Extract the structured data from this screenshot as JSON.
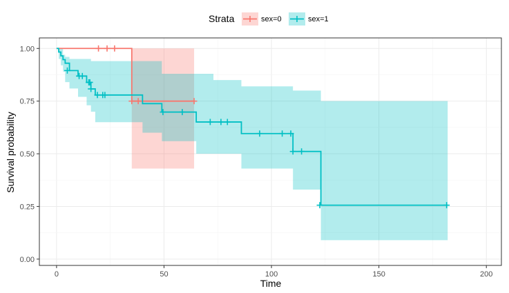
{
  "chart_data": {
    "type": "line",
    "subtype": "kaplan-meier-step",
    "xlabel": "Time",
    "ylabel": "Survival probability",
    "xlim": [
      -8,
      207
    ],
    "ylim": [
      -0.03,
      1.05
    ],
    "x_ticks": [
      0,
      50,
      100,
      150,
      200
    ],
    "x_tick_labels": [
      "0",
      "50",
      "100",
      "150",
      "200"
    ],
    "y_ticks": [
      0,
      0.25,
      0.5,
      0.75,
      1.0
    ],
    "y_tick_labels": [
      "0.00",
      "0.25",
      "0.50",
      "0.75",
      "1.00"
    ],
    "grid": true,
    "legend": {
      "title": "Strata",
      "position": "top",
      "entries": [
        "sex=0",
        "sex=1"
      ]
    },
    "series": [
      {
        "name": "sex=0",
        "color": "#F8766D",
        "ci_fill": "#F8766D",
        "x": [
          0,
          35,
          64
        ],
        "y": [
          1.0,
          0.75,
          0.75
        ],
        "ci_x": [
          0,
          35,
          64
        ],
        "ci_lower": [
          1.0,
          0.43,
          0.43
        ],
        "ci_upper": [
          1.0,
          1.0,
          1.0
        ],
        "censor_x": [
          19.5,
          23.5,
          27,
          35,
          38,
          64
        ],
        "censor_y": [
          1.0,
          1.0,
          1.0,
          0.75,
          0.75,
          0.75
        ]
      },
      {
        "name": "sex=1",
        "color": "#00BFC4",
        "ci_fill": "#00BFC4",
        "x": [
          0,
          1,
          2,
          3,
          4,
          6,
          10,
          14,
          16,
          18,
          40,
          49,
          65,
          73,
          86,
          110,
          123,
          182
        ],
        "y": [
          1.0,
          0.983,
          0.965,
          0.947,
          0.93,
          0.895,
          0.869,
          0.839,
          0.808,
          0.779,
          0.738,
          0.698,
          0.651,
          0.651,
          0.596,
          0.511,
          0.256,
          0.256
        ],
        "ci_x": [
          0,
          1,
          2,
          3,
          4,
          6,
          10,
          14,
          16,
          18,
          40,
          49,
          65,
          73,
          86,
          110,
          123,
          182
        ],
        "ci_lower": [
          1.0,
          0.95,
          0.92,
          0.89,
          0.84,
          0.81,
          0.77,
          0.73,
          0.7,
          0.65,
          0.6,
          0.56,
          0.5,
          0.5,
          0.43,
          0.33,
          0.09,
          0.09
        ],
        "ci_upper": [
          1.0,
          1.0,
          1.0,
          0.97,
          0.96,
          0.95,
          0.95,
          0.95,
          0.94,
          0.94,
          0.94,
          0.88,
          0.88,
          0.85,
          0.82,
          0.8,
          0.75,
          0.75
        ],
        "censor_x": [
          5,
          10.5,
          12,
          15,
          15.5,
          16,
          19,
          21.5,
          22.5,
          49.5,
          58.5,
          71.5,
          76.5,
          79.5,
          94.5,
          105,
          109,
          110,
          114,
          122.5,
          181.5
        ],
        "censor_y": [
          0.895,
          0.869,
          0.869,
          0.839,
          0.839,
          0.808,
          0.779,
          0.779,
          0.779,
          0.698,
          0.698,
          0.651,
          0.651,
          0.651,
          0.596,
          0.596,
          0.596,
          0.511,
          0.511,
          0.256,
          0.256
        ]
      }
    ]
  }
}
